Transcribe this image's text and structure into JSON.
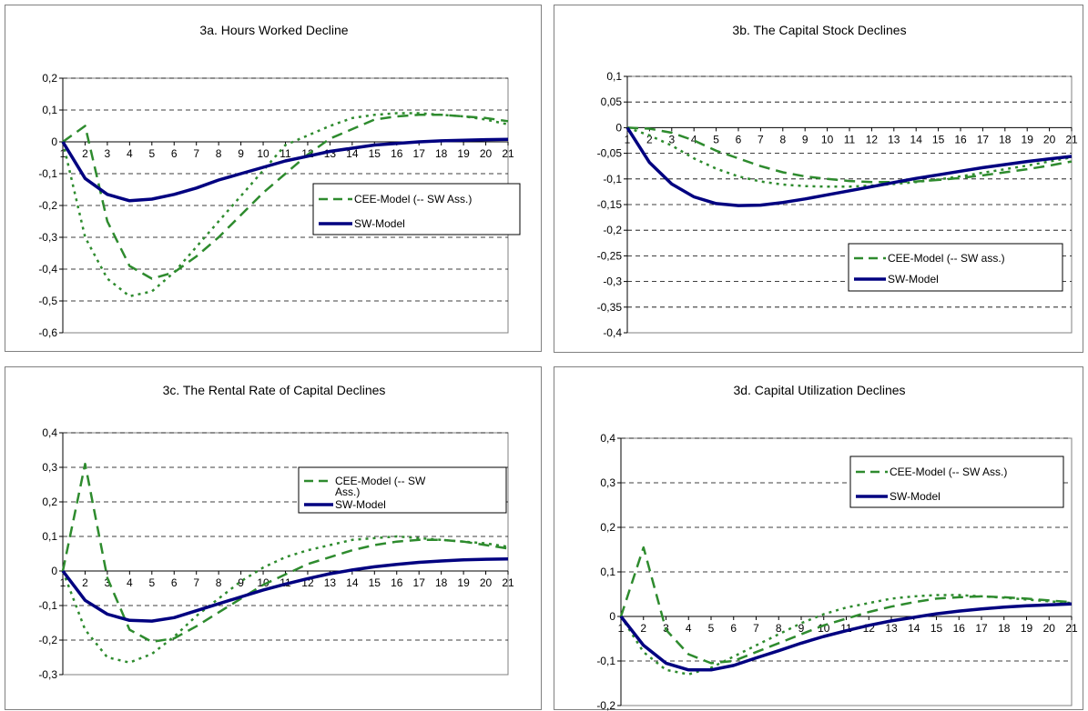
{
  "colors": {
    "cee": "#2e8b2e",
    "sw": "#000080",
    "grid": "#000000",
    "plot_border": "#808080"
  },
  "chart_data": [
    {
      "type": "line",
      "title": "3a. Hours Worked Decline",
      "x": [
        1,
        2,
        3,
        4,
        5,
        6,
        7,
        8,
        9,
        10,
        11,
        12,
        13,
        14,
        15,
        16,
        17,
        18,
        19,
        20,
        21
      ],
      "ylim": [
        -0.6,
        0.2
      ],
      "yticks": [
        "0,2",
        "0,1",
        "0",
        "-0,1",
        "-0,2",
        "-0,3",
        "-0,4",
        "-0,5",
        "-0,6"
      ],
      "ytick_values": [
        0.2,
        0.1,
        0,
        -0.1,
        -0.2,
        -0.3,
        -0.4,
        -0.5,
        -0.6
      ],
      "grid": "horizontal-dashed",
      "legend_position": "center-right",
      "legend": [
        "CEE-Model (-- SW Ass.)",
        "SW-Model"
      ],
      "series": [
        {
          "name": "CEE-Model (-- SW Ass.)",
          "style": "dashed",
          "values": [
            0,
            0.05,
            -0.25,
            -0.39,
            -0.43,
            -0.41,
            -0.36,
            -0.3,
            -0.23,
            -0.16,
            -0.1,
            -0.04,
            0.01,
            0.04,
            0.07,
            0.08,
            0.085,
            0.085,
            0.08,
            0.075,
            0.065
          ]
        },
        {
          "style": "dotted",
          "values": [
            0,
            -0.3,
            -0.43,
            -0.485,
            -0.47,
            -0.41,
            -0.33,
            -0.25,
            -0.17,
            -0.09,
            -0.01,
            0.02,
            0.05,
            0.075,
            0.085,
            0.09,
            0.09,
            0.085,
            0.08,
            0.07,
            0.055
          ]
        },
        {
          "name": "SW-Model",
          "style": "solid",
          "values": [
            0,
            -0.115,
            -0.165,
            -0.185,
            -0.18,
            -0.165,
            -0.145,
            -0.12,
            -0.1,
            -0.08,
            -0.06,
            -0.045,
            -0.03,
            -0.02,
            -0.01,
            -0.005,
            0,
            0.003,
            0.005,
            0.007,
            0.008
          ]
        }
      ]
    },
    {
      "type": "line",
      "title": "3b.  The Capital Stock Declines",
      "x": [
        1,
        2,
        3,
        4,
        5,
        6,
        7,
        8,
        9,
        10,
        11,
        12,
        13,
        14,
        15,
        16,
        17,
        18,
        19,
        20,
        21
      ],
      "ylim": [
        -0.4,
        0.1
      ],
      "yticks": [
        "0,1",
        "0,05",
        "0",
        "-0,05",
        "-0,1",
        "-0,15",
        "-0,2",
        "-0,25",
        "-0,3",
        "-0,35",
        "-0,4"
      ],
      "ytick_values": [
        0.1,
        0.05,
        0,
        -0.05,
        -0.1,
        -0.15,
        -0.2,
        -0.25,
        -0.3,
        -0.35,
        -0.4
      ],
      "grid": "horizontal-dashed",
      "legend_position": "lower-right",
      "legend": [
        "CEE-Model (-- SW ass.)",
        "SW-Model"
      ],
      "series": [
        {
          "name": "CEE-Model (-- SW ass.)",
          "style": "dashed",
          "values": [
            0,
            -0.002,
            -0.01,
            -0.025,
            -0.045,
            -0.06,
            -0.075,
            -0.087,
            -0.095,
            -0.1,
            -0.104,
            -0.106,
            -0.106,
            -0.105,
            -0.102,
            -0.098,
            -0.093,
            -0.087,
            -0.081,
            -0.074,
            -0.066
          ]
        },
        {
          "style": "dotted",
          "values": [
            0,
            -0.015,
            -0.035,
            -0.06,
            -0.08,
            -0.095,
            -0.105,
            -0.111,
            -0.114,
            -0.115,
            -0.115,
            -0.113,
            -0.11,
            -0.106,
            -0.101,
            -0.095,
            -0.088,
            -0.081,
            -0.074,
            -0.066,
            -0.058
          ]
        },
        {
          "name": "SW-Model",
          "style": "solid",
          "values": [
            0,
            -0.068,
            -0.11,
            -0.135,
            -0.148,
            -0.152,
            -0.151,
            -0.146,
            -0.139,
            -0.131,
            -0.123,
            -0.115,
            -0.107,
            -0.099,
            -0.092,
            -0.085,
            -0.078,
            -0.072,
            -0.066,
            -0.061,
            -0.056
          ]
        }
      ]
    },
    {
      "type": "line",
      "title": "3c.  The Rental Rate of Capital Declines",
      "x": [
        1,
        2,
        3,
        4,
        5,
        6,
        7,
        8,
        9,
        10,
        11,
        12,
        13,
        14,
        15,
        16,
        17,
        18,
        19,
        20,
        21
      ],
      "ylim": [
        -0.3,
        0.4
      ],
      "yticks": [
        "0,4",
        "0,3",
        "0,2",
        "0,1",
        "0",
        "-0,1",
        "-0,2",
        "-0,3"
      ],
      "ytick_values": [
        0.4,
        0.3,
        0.2,
        0.1,
        0,
        -0.1,
        -0.2,
        -0.3
      ],
      "grid": "horizontal-dashed",
      "legend_position": "top-right",
      "legend": [
        "CEE-Model (-- SW",
        "Ass.)",
        "SW-Model"
      ],
      "series": [
        {
          "name": "CEE-Model (-- SW Ass.)",
          "style": "dashed",
          "values": [
            0,
            0.31,
            -0.02,
            -0.17,
            -0.205,
            -0.195,
            -0.16,
            -0.12,
            -0.08,
            -0.04,
            -0.01,
            0.02,
            0.04,
            0.06,
            0.075,
            0.085,
            0.09,
            0.09,
            0.085,
            0.075,
            0.065
          ]
        },
        {
          "style": "dotted",
          "values": [
            0,
            -0.17,
            -0.25,
            -0.265,
            -0.24,
            -0.19,
            -0.13,
            -0.08,
            -0.03,
            0.01,
            0.04,
            0.06,
            0.075,
            0.09,
            0.095,
            0.1,
            0.095,
            0.09,
            0.085,
            0.08,
            0.07
          ]
        },
        {
          "name": "SW-Model",
          "style": "solid",
          "values": [
            0,
            -0.085,
            -0.125,
            -0.143,
            -0.145,
            -0.135,
            -0.115,
            -0.095,
            -0.075,
            -0.055,
            -0.038,
            -0.022,
            -0.008,
            0.003,
            0.012,
            0.019,
            0.025,
            0.029,
            0.032,
            0.034,
            0.035
          ]
        }
      ]
    },
    {
      "type": "line",
      "title": "3d.  Capital Utilization Declines",
      "x": [
        1,
        2,
        3,
        4,
        5,
        6,
        7,
        8,
        9,
        10,
        11,
        12,
        13,
        14,
        15,
        16,
        17,
        18,
        19,
        20,
        21
      ],
      "ylim": [
        -0.2,
        0.4
      ],
      "yticks": [
        "0,4",
        "0,3",
        "0,2",
        "0,1",
        "0",
        "-0,1",
        "-0,2"
      ],
      "ytick_values": [
        0.4,
        0.3,
        0.2,
        0.1,
        0,
        -0.1,
        -0.2
      ],
      "grid": "horizontal-dashed",
      "legend_position": "top-right",
      "legend": [
        "CEE-Model (-- SW Ass.)",
        "SW-Model"
      ],
      "series": [
        {
          "name": "CEE-Model (-- SW Ass.)",
          "style": "dashed",
          "values": [
            0,
            0.155,
            -0.03,
            -0.085,
            -0.105,
            -0.1,
            -0.08,
            -0.06,
            -0.04,
            -0.02,
            -0.005,
            0.01,
            0.022,
            0.032,
            0.04,
            0.043,
            0.045,
            0.043,
            0.04,
            0.036,
            0.032
          ]
        },
        {
          "style": "dotted",
          "values": [
            0,
            -0.08,
            -0.12,
            -0.13,
            -0.115,
            -0.09,
            -0.065,
            -0.04,
            -0.015,
            0.005,
            0.02,
            0.03,
            0.04,
            0.045,
            0.048,
            0.048,
            0.045,
            0.042,
            0.038,
            0.034,
            0.03
          ]
        },
        {
          "name": "SW-Model",
          "style": "solid",
          "values": [
            0,
            -0.065,
            -0.105,
            -0.12,
            -0.12,
            -0.11,
            -0.093,
            -0.077,
            -0.06,
            -0.045,
            -0.032,
            -0.02,
            -0.01,
            -0.002,
            0.006,
            0.012,
            0.017,
            0.021,
            0.024,
            0.026,
            0.028
          ]
        }
      ]
    }
  ]
}
